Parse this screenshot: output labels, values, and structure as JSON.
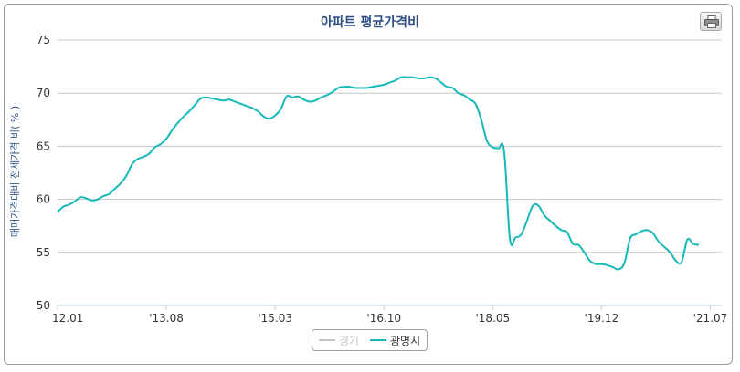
{
  "title": "아파트 평균가격비",
  "print_icon": "printer-icon",
  "colors": {
    "primary": "#16b8b8",
    "inactive": "#c4c4c4",
    "grid": "#c8c8c8",
    "title": "#2e4f84"
  },
  "chart_data": {
    "type": "line",
    "ylabel": "매매가격대비 전세가격 비( % )",
    "ylim": [
      50,
      75
    ],
    "yticks": [
      "50",
      "55",
      "60",
      "65",
      "70",
      "75"
    ],
    "xlim": [
      0,
      116
    ],
    "xticks": [
      {
        "label": "12.01",
        "x": 0
      },
      {
        "label": "'13.08",
        "x": 19
      },
      {
        "label": "'15.03",
        "x": 38
      },
      {
        "label": "'16.10",
        "x": 57
      },
      {
        "label": "'18.05",
        "x": 76
      },
      {
        "label": "'19.12",
        "x": 95
      },
      {
        "label": "'21.07",
        "x": 114
      }
    ],
    "grid": true,
    "legend_position": "bottom",
    "series": [
      {
        "name": "경기",
        "active": false,
        "points": []
      },
      {
        "name": "광명시",
        "active": true,
        "points": [
          [
            0,
            58.8
          ],
          [
            1,
            59.3
          ],
          [
            2,
            59.5
          ],
          [
            3,
            59.8
          ],
          [
            4,
            60.2
          ],
          [
            5,
            60.1
          ],
          [
            6,
            59.9
          ],
          [
            7,
            60.0
          ],
          [
            8,
            60.3
          ],
          [
            9,
            60.5
          ],
          [
            10,
            61.0
          ],
          [
            11,
            61.5
          ],
          [
            12,
            62.2
          ],
          [
            13,
            63.3
          ],
          [
            14,
            63.8
          ],
          [
            15,
            64.0
          ],
          [
            16,
            64.3
          ],
          [
            17,
            64.9
          ],
          [
            18,
            65.2
          ],
          [
            19,
            65.7
          ],
          [
            20,
            66.5
          ],
          [
            21,
            67.2
          ],
          [
            22,
            67.8
          ],
          [
            23,
            68.3
          ],
          [
            24,
            68.9
          ],
          [
            25,
            69.5
          ],
          [
            26,
            69.6
          ],
          [
            27,
            69.5
          ],
          [
            28,
            69.4
          ],
          [
            29,
            69.3
          ],
          [
            30,
            69.4
          ],
          [
            31,
            69.2
          ],
          [
            32,
            69.0
          ],
          [
            33,
            68.8
          ],
          [
            34,
            68.6
          ],
          [
            35,
            68.3
          ],
          [
            36,
            67.8
          ],
          [
            37,
            67.6
          ],
          [
            38,
            67.9
          ],
          [
            39,
            68.5
          ],
          [
            40,
            69.7
          ],
          [
            41,
            69.6
          ],
          [
            42,
            69.7
          ],
          [
            43,
            69.4
          ],
          [
            44,
            69.2
          ],
          [
            45,
            69.3
          ],
          [
            46,
            69.6
          ],
          [
            47,
            69.8
          ],
          [
            48,
            70.1
          ],
          [
            49,
            70.5
          ],
          [
            50,
            70.6
          ],
          [
            51,
            70.6
          ],
          [
            52,
            70.5
          ],
          [
            53,
            70.5
          ],
          [
            54,
            70.5
          ],
          [
            55,
            70.6
          ],
          [
            56,
            70.7
          ],
          [
            57,
            70.8
          ],
          [
            58,
            71.0
          ],
          [
            59,
            71.2
          ],
          [
            60,
            71.5
          ],
          [
            61,
            71.5
          ],
          [
            62,
            71.5
          ],
          [
            63,
            71.4
          ],
          [
            64,
            71.4
          ],
          [
            65,
            71.5
          ],
          [
            66,
            71.4
          ],
          [
            67,
            71.0
          ],
          [
            68,
            70.6
          ],
          [
            69,
            70.5
          ],
          [
            70,
            70.0
          ],
          [
            71,
            69.8
          ],
          [
            72,
            69.4
          ],
          [
            73,
            69.0
          ],
          [
            74,
            67.5
          ],
          [
            75,
            65.5
          ],
          [
            76,
            64.9
          ],
          [
            77,
            64.8
          ],
          [
            78,
            64.5
          ],
          [
            79,
            56.3
          ],
          [
            80,
            56.4
          ],
          [
            81,
            56.7
          ],
          [
            82,
            58.0
          ],
          [
            83,
            59.4
          ],
          [
            84,
            59.4
          ],
          [
            85,
            58.5
          ],
          [
            86,
            58.0
          ],
          [
            87,
            57.5
          ],
          [
            88,
            57.1
          ],
          [
            89,
            56.9
          ],
          [
            90,
            55.8
          ],
          [
            91,
            55.7
          ],
          [
            92,
            55.0
          ],
          [
            93,
            54.2
          ],
          [
            94,
            53.9
          ],
          [
            95,
            53.9
          ],
          [
            96,
            53.8
          ],
          [
            97,
            53.6
          ],
          [
            98,
            53.4
          ],
          [
            99,
            54.0
          ],
          [
            100,
            56.3
          ],
          [
            101,
            56.7
          ],
          [
            102,
            57.0
          ],
          [
            103,
            57.1
          ],
          [
            104,
            56.8
          ],
          [
            105,
            56.0
          ],
          [
            106,
            55.5
          ],
          [
            107,
            55.0
          ],
          [
            108,
            54.2
          ],
          [
            109,
            54.1
          ],
          [
            110,
            56.2
          ],
          [
            111,
            55.8
          ],
          [
            112,
            55.7
          ]
        ]
      }
    ]
  }
}
